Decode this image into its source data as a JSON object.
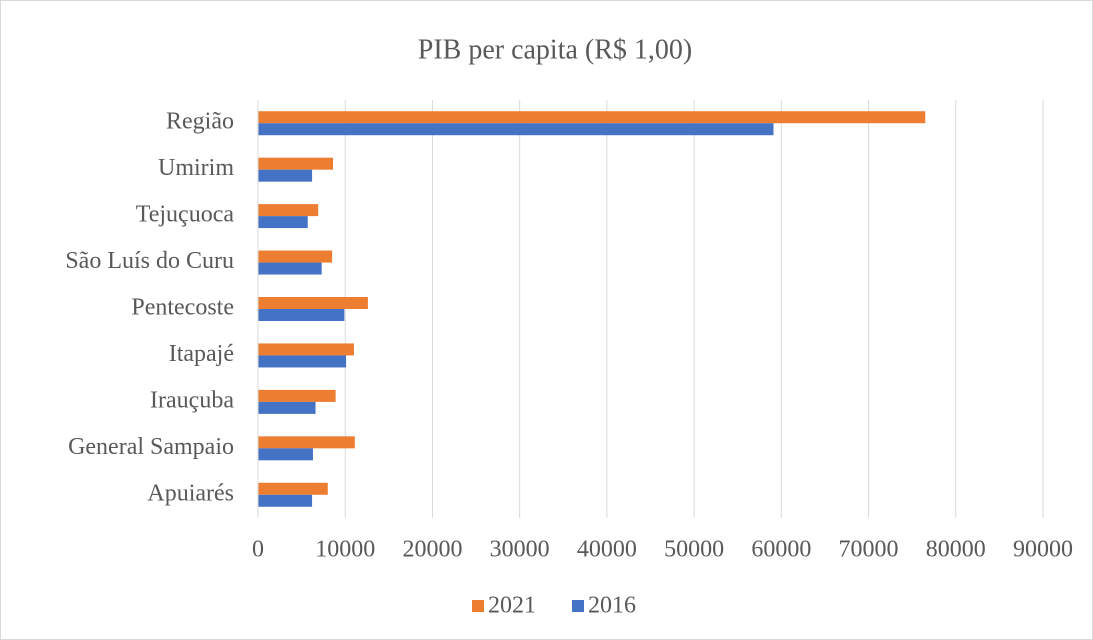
{
  "chart_data": {
    "type": "hbar",
    "title": "PIB per capita (R$ 1,00)",
    "categories": [
      "Região",
      "Umirim",
      "Tejuçuoca",
      "São Luís do Curu",
      "Pentecoste",
      "Itapajé",
      "Irauçuba",
      "General Sampaio",
      "Apuiarés"
    ],
    "series": [
      {
        "name": "2021",
        "color": "#ed7d31",
        "values": [
          76500,
          8600,
          6900,
          8500,
          12600,
          11000,
          8900,
          11100,
          8000
        ]
      },
      {
        "name": "2016",
        "color": "#4472c4",
        "values": [
          59100,
          6200,
          5700,
          7300,
          9900,
          10100,
          6600,
          6300,
          6200
        ]
      }
    ],
    "xlim": [
      0,
      90000
    ],
    "xticks": [
      0,
      10000,
      20000,
      30000,
      40000,
      50000,
      60000,
      70000,
      80000,
      90000
    ],
    "grid": true,
    "legend": "bottom"
  }
}
